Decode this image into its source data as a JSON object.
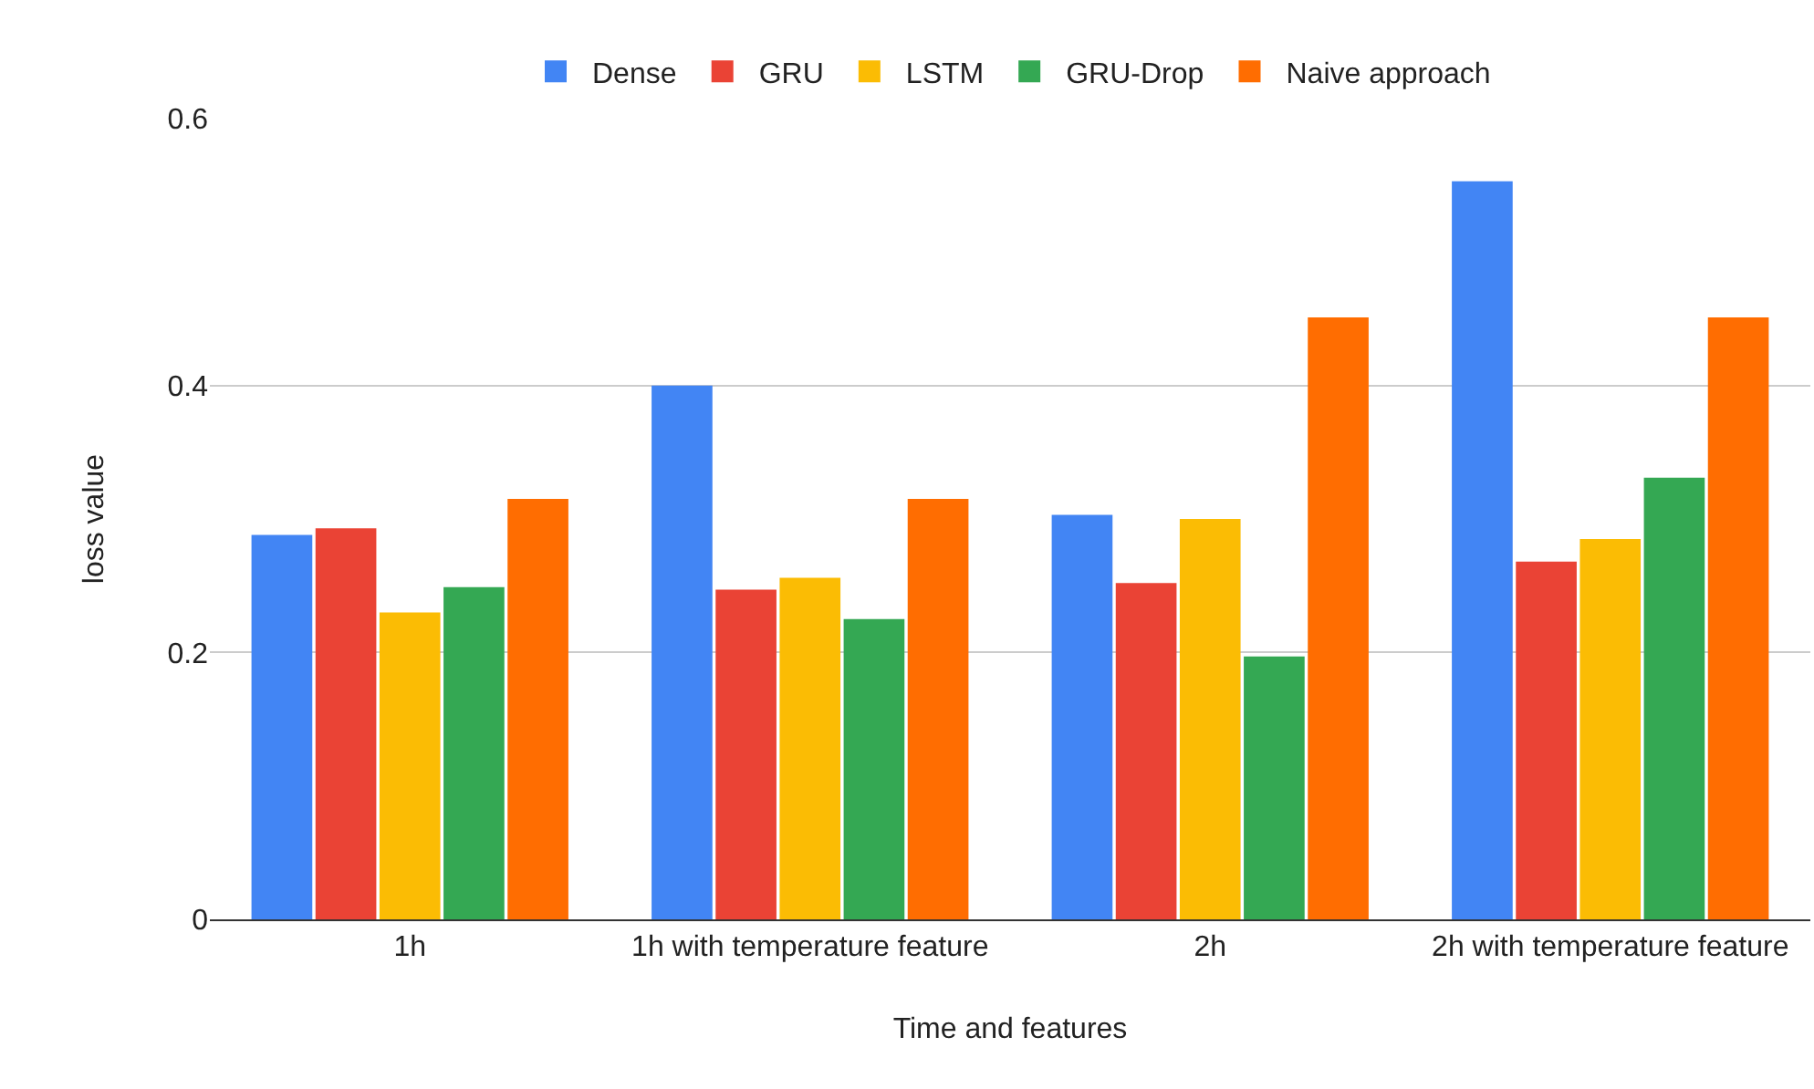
{
  "chart_data": {
    "type": "bar",
    "xlabel": "Time and features",
    "ylabel": "loss value",
    "categories": [
      "1h",
      "1h with temperature feature",
      "2h",
      "2h with temperature feature"
    ],
    "series": [
      {
        "name": "Dense",
        "color": "#4285f4",
        "values": [
          0.288,
          0.4,
          0.303,
          0.553
        ]
      },
      {
        "name": "GRU",
        "color": "#ea4335",
        "values": [
          0.293,
          0.247,
          0.252,
          0.268
        ]
      },
      {
        "name": "LSTM",
        "color": "#fbbc04",
        "values": [
          0.23,
          0.256,
          0.3,
          0.285
        ]
      },
      {
        "name": "GRU-Drop",
        "color": "#34a853",
        "values": [
          0.249,
          0.225,
          0.197,
          0.331
        ]
      },
      {
        "name": "Naive approach",
        "color": "#ff6d01",
        "values": [
          0.315,
          0.315,
          0.451,
          0.451
        ]
      }
    ],
    "ylim": [
      0,
      0.6
    ],
    "yticks": [
      0,
      0.2,
      0.4,
      0.6
    ],
    "grid": "y",
    "legend": "top"
  }
}
